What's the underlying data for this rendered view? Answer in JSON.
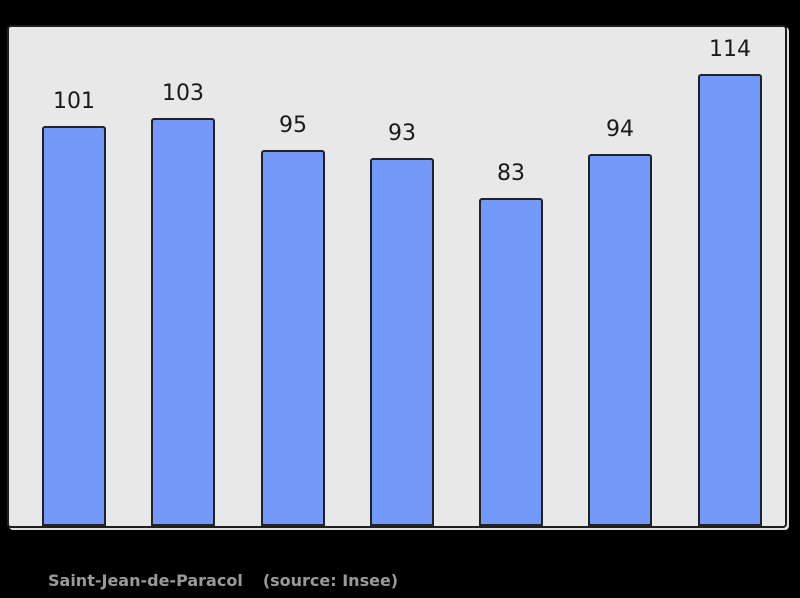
{
  "page": {
    "background_color": "#000000"
  },
  "chart_data": {
    "type": "bar",
    "values": [
      101,
      103,
      95,
      93,
      83,
      94,
      114
    ],
    "data_labels": [
      "101",
      "103",
      "95",
      "93",
      "83",
      "94",
      "114"
    ],
    "categories": [
      "",
      "",
      "",
      "",
      "",
      "",
      ""
    ],
    "title": "",
    "xlabel": "",
    "ylabel": "",
    "ylim": [
      0,
      126
    ],
    "grid": false,
    "legend": false,
    "data_labels_position": "above-bars",
    "bar_color": "#7399FA",
    "bar_border_color": "#222222",
    "plot_background_color": "#E8E8E8",
    "plot_border_color": "#1E1E1E",
    "label_color": "#1A1A1A"
  },
  "caption": {
    "commune_label": "Saint-Jean-de-Paracol",
    "source_label": "(source: Insee)",
    "text_color": "#9A9A9A"
  }
}
